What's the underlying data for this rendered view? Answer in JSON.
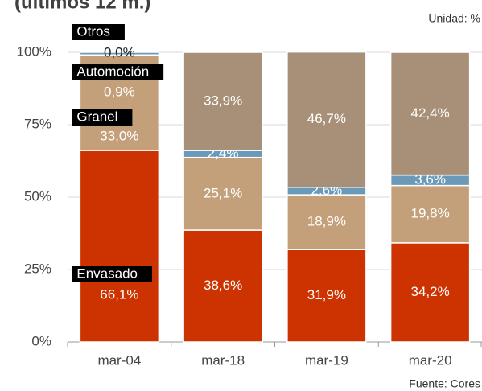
{
  "chart_data": {
    "type": "stacked_bar",
    "title": "(últimos 12 m.)",
    "unit_note": "Unidad: %",
    "source": "Fuente: Cores",
    "categories": [
      "mar-04",
      "mar-18",
      "mar-19",
      "mar-20"
    ],
    "series": [
      {
        "name": "Envasado",
        "color": "#cc3300",
        "values": [
          66.1,
          38.6,
          31.9,
          34.2
        ],
        "value_labels": [
          "66,1%",
          "38,6%",
          "31,9%",
          "34,2%"
        ]
      },
      {
        "name": "Granel",
        "color": "#c4a07a",
        "values": [
          33.0,
          25.1,
          18.9,
          19.8
        ],
        "value_labels": [
          "33,0%",
          "25,1%",
          "18,9%",
          "19,8%"
        ]
      },
      {
        "name": "Automoción",
        "color": "#6b99b8",
        "values": [
          0.9,
          2.4,
          2.6,
          3.6
        ],
        "value_labels": [
          "0,9%",
          "2,4%",
          "2,6%",
          "3,6%"
        ]
      },
      {
        "name": "Otros",
        "color": "#a89078",
        "values": [
          0.0,
          33.9,
          46.7,
          42.4
        ],
        "value_labels": [
          "0,0%",
          "33,9%",
          "46,7%",
          "42,4%"
        ]
      }
    ],
    "ylim": [
      0,
      100
    ],
    "yticks": [
      {
        "value": 0,
        "label": "0%"
      },
      {
        "value": 25,
        "label": "25%"
      },
      {
        "value": 50,
        "label": "50%"
      },
      {
        "value": 75,
        "label": "75%"
      },
      {
        "value": 100,
        "label": "100%"
      }
    ],
    "grid": true
  }
}
